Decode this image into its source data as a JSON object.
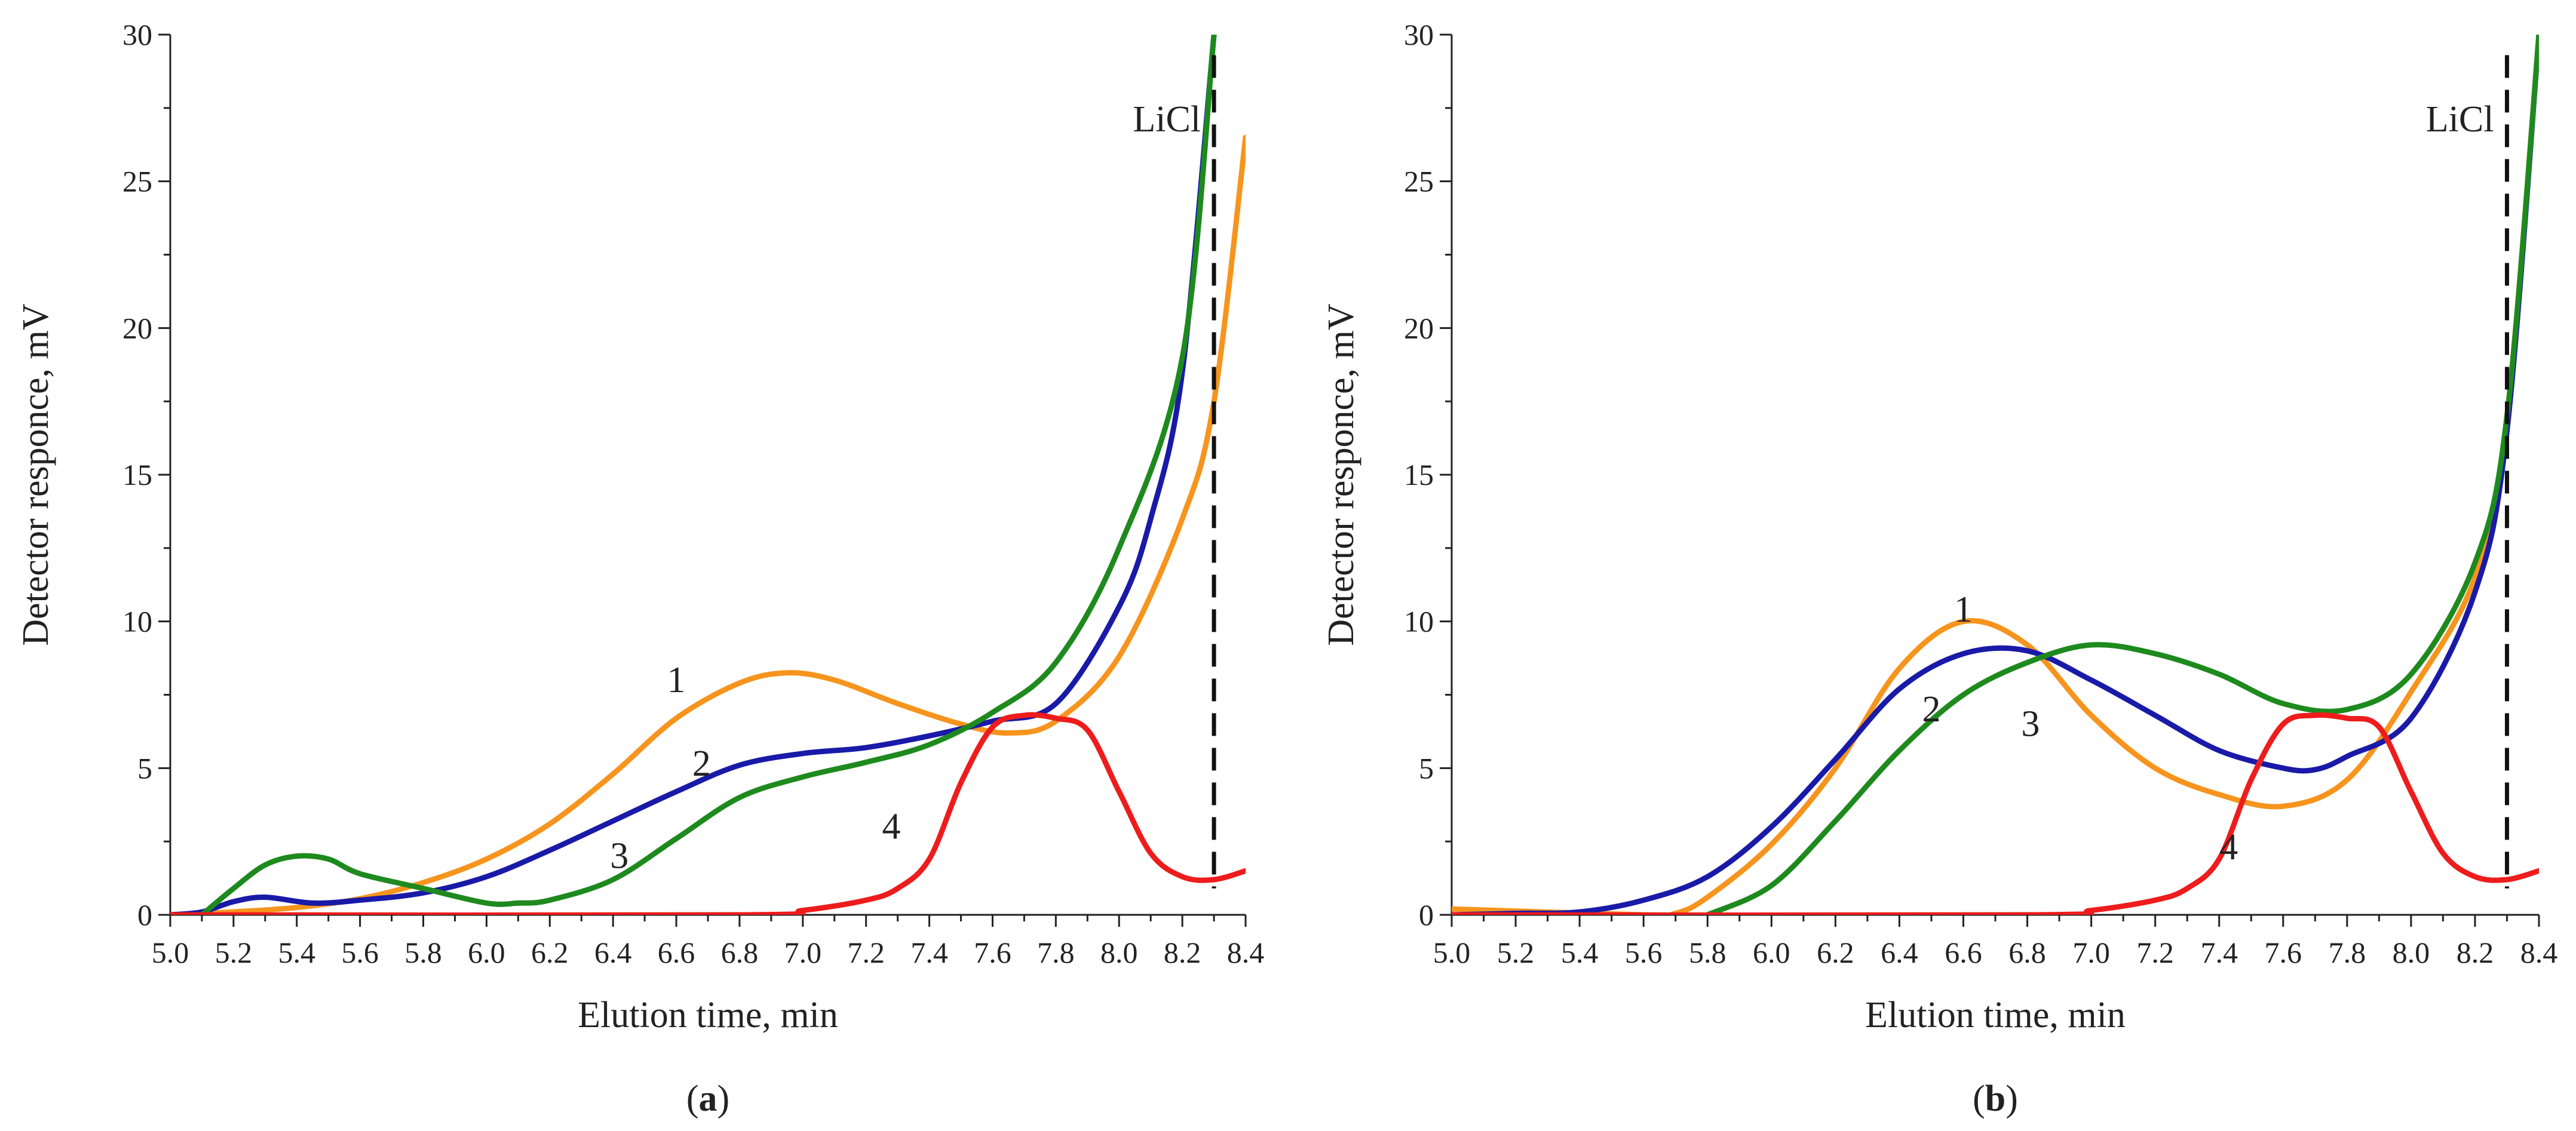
{
  "colors": {
    "series_1": "#f7941d",
    "series_2": "#1a1aa8",
    "series_3": "#1e8a1e",
    "series_4": "#ee1c1c",
    "axis": "#222222"
  },
  "chart_data": [
    {
      "type": "line",
      "panel_label_open": "(",
      "panel_label_letter": "a",
      "panel_label_close": ")",
      "xlabel": "Elution time, min",
      "ylabel": "Detector responce, mV",
      "xlim": [
        5.0,
        8.4
      ],
      "ylim": [
        0,
        30
      ],
      "xticks": [
        "5.0",
        "5.2",
        "5.4",
        "5.6",
        "5.8",
        "6.0",
        "6.2",
        "6.4",
        "6.6",
        "6.8",
        "7.0",
        "7.2",
        "7.4",
        "7.6",
        "7.8",
        "8.0",
        "8.2",
        "8.4"
      ],
      "yticks": [
        "0",
        "5",
        "10",
        "15",
        "20",
        "25",
        "30"
      ],
      "marker": {
        "label": "LiCl",
        "x": 8.3
      },
      "series": [
        {
          "name": "1",
          "label_at": [
            6.6,
            8.0
          ],
          "points": [
            [
              5.0,
              0
            ],
            [
              5.2,
              0.1
            ],
            [
              5.4,
              0.25
            ],
            [
              5.6,
              0.55
            ],
            [
              5.8,
              1.1
            ],
            [
              6.0,
              1.9
            ],
            [
              6.2,
              3.1
            ],
            [
              6.4,
              4.8
            ],
            [
              6.6,
              6.7
            ],
            [
              6.8,
              7.9
            ],
            [
              6.95,
              8.25
            ],
            [
              7.1,
              8.0
            ],
            [
              7.3,
              7.2
            ],
            [
              7.5,
              6.5
            ],
            [
              7.65,
              6.2
            ],
            [
              7.8,
              6.6
            ],
            [
              8.0,
              8.8
            ],
            [
              8.2,
              13.5
            ],
            [
              8.3,
              17.5
            ],
            [
              8.4,
              26.5
            ]
          ]
        },
        {
          "name": "2",
          "label_at": [
            6.68,
            5.15
          ],
          "points": [
            [
              5.0,
              0
            ],
            [
              5.1,
              0.1
            ],
            [
              5.2,
              0.45
            ],
            [
              5.3,
              0.6
            ],
            [
              5.45,
              0.4
            ],
            [
              5.6,
              0.5
            ],
            [
              5.8,
              0.75
            ],
            [
              6.0,
              1.3
            ],
            [
              6.2,
              2.2
            ],
            [
              6.4,
              3.2
            ],
            [
              6.6,
              4.2
            ],
            [
              6.8,
              5.1
            ],
            [
              7.0,
              5.5
            ],
            [
              7.2,
              5.7
            ],
            [
              7.4,
              6.1
            ],
            [
              7.6,
              6.6
            ],
            [
              7.8,
              7.2
            ],
            [
              8.0,
              10.5
            ],
            [
              8.1,
              13.5
            ],
            [
              8.2,
              18.5
            ],
            [
              8.3,
              30
            ]
          ]
        },
        {
          "name": "3",
          "label_at": [
            6.42,
            2.0
          ],
          "points": [
            [
              5.1,
              0
            ],
            [
              5.2,
              0.9
            ],
            [
              5.3,
              1.7
            ],
            [
              5.4,
              2.0
            ],
            [
              5.5,
              1.9
            ],
            [
              5.6,
              1.4
            ],
            [
              5.8,
              0.9
            ],
            [
              6.0,
              0.4
            ],
            [
              6.1,
              0.4
            ],
            [
              6.2,
              0.5
            ],
            [
              6.4,
              1.2
            ],
            [
              6.6,
              2.6
            ],
            [
              6.8,
              4.0
            ],
            [
              7.0,
              4.7
            ],
            [
              7.2,
              5.2
            ],
            [
              7.4,
              5.8
            ],
            [
              7.6,
              6.9
            ],
            [
              7.8,
              8.6
            ],
            [
              8.0,
              12.5
            ],
            [
              8.2,
              19.0
            ],
            [
              8.3,
              30
            ]
          ]
        },
        {
          "name": "4",
          "label_at": [
            7.28,
            3.0
          ],
          "points": [
            [
              5.0,
              0
            ],
            [
              6.8,
              0
            ],
            [
              7.0,
              0.15
            ],
            [
              7.2,
              0.5
            ],
            [
              7.3,
              0.9
            ],
            [
              7.4,
              1.9
            ],
            [
              7.5,
              4.5
            ],
            [
              7.6,
              6.4
            ],
            [
              7.7,
              6.8
            ],
            [
              7.8,
              6.7
            ],
            [
              7.9,
              6.3
            ],
            [
              8.0,
              4.2
            ],
            [
              8.1,
              2.1
            ],
            [
              8.2,
              1.3
            ],
            [
              8.3,
              1.2
            ],
            [
              8.4,
              1.5
            ]
          ]
        }
      ]
    },
    {
      "type": "line",
      "panel_label_open": "(",
      "panel_label_letter": "b",
      "panel_label_close": ")",
      "xlabel": "Elution time, min",
      "ylabel": "Detector responce, mV",
      "xlim": [
        5.0,
        8.4
      ],
      "ylim": [
        0,
        30
      ],
      "xticks": [
        "5.0",
        "5.2",
        "5.4",
        "5.6",
        "5.8",
        "6.0",
        "6.2",
        "6.4",
        "6.6",
        "6.8",
        "7.0",
        "7.2",
        "7.4",
        "7.6",
        "7.8",
        "8.0",
        "8.2",
        "8.4"
      ],
      "yticks": [
        "0",
        "5",
        "10",
        "15",
        "20",
        "25",
        "30"
      ],
      "marker": {
        "label": "LiCl",
        "x": 8.3
      },
      "series": [
        {
          "name": "1",
          "label_at": [
            6.6,
            10.4
          ],
          "points": [
            [
              5.0,
              0.2
            ],
            [
              5.6,
              0
            ],
            [
              5.7,
              0.05
            ],
            [
              5.8,
              0.6
            ],
            [
              6.0,
              2.4
            ],
            [
              6.2,
              5.0
            ],
            [
              6.4,
              8.4
            ],
            [
              6.6,
              10.0
            ],
            [
              6.8,
              9.2
            ],
            [
              7.0,
              6.8
            ],
            [
              7.2,
              5.0
            ],
            [
              7.4,
              4.1
            ],
            [
              7.6,
              3.7
            ],
            [
              7.8,
              4.6
            ],
            [
              8.0,
              7.6
            ],
            [
              8.2,
              11.5
            ],
            [
              8.3,
              17.0
            ],
            [
              8.4,
              30
            ]
          ]
        },
        {
          "name": "2",
          "label_at": [
            6.5,
            7.0
          ],
          "points": [
            [
              5.0,
              0
            ],
            [
              5.2,
              0.05
            ],
            [
              5.4,
              0.1
            ],
            [
              5.6,
              0.5
            ],
            [
              5.8,
              1.3
            ],
            [
              6.0,
              3.0
            ],
            [
              6.2,
              5.3
            ],
            [
              6.4,
              7.7
            ],
            [
              6.6,
              8.9
            ],
            [
              6.8,
              9.0
            ],
            [
              7.0,
              8.0
            ],
            [
              7.2,
              6.8
            ],
            [
              7.4,
              5.6
            ],
            [
              7.6,
              5.0
            ],
            [
              7.7,
              4.95
            ],
            [
              7.8,
              5.4
            ],
            [
              8.0,
              6.7
            ],
            [
              8.2,
              11.0
            ],
            [
              8.3,
              16.5
            ],
            [
              8.4,
              30
            ]
          ]
        },
        {
          "name": "3",
          "label_at": [
            6.81,
            6.5
          ],
          "points": [
            [
              5.8,
              0
            ],
            [
              6.0,
              1.0
            ],
            [
              6.2,
              3.2
            ],
            [
              6.4,
              5.6
            ],
            [
              6.6,
              7.5
            ],
            [
              6.8,
              8.6
            ],
            [
              7.0,
              9.2
            ],
            [
              7.2,
              8.9
            ],
            [
              7.4,
              8.2
            ],
            [
              7.6,
              7.2
            ],
            [
              7.8,
              7.0
            ],
            [
              8.0,
              8.2
            ],
            [
              8.2,
              12.0
            ],
            [
              8.3,
              17.0
            ],
            [
              8.4,
              30
            ]
          ]
        },
        {
          "name": "4",
          "label_at": [
            7.43,
            2.3
          ],
          "points": [
            [
              5.0,
              0
            ],
            [
              6.8,
              0
            ],
            [
              7.0,
              0.15
            ],
            [
              7.2,
              0.5
            ],
            [
              7.3,
              0.9
            ],
            [
              7.4,
              1.9
            ],
            [
              7.5,
              4.6
            ],
            [
              7.6,
              6.5
            ],
            [
              7.7,
              6.8
            ],
            [
              7.8,
              6.7
            ],
            [
              7.9,
              6.4
            ],
            [
              8.0,
              4.2
            ],
            [
              8.1,
              2.1
            ],
            [
              8.2,
              1.3
            ],
            [
              8.3,
              1.2
            ],
            [
              8.4,
              1.5
            ]
          ]
        }
      ]
    }
  ]
}
